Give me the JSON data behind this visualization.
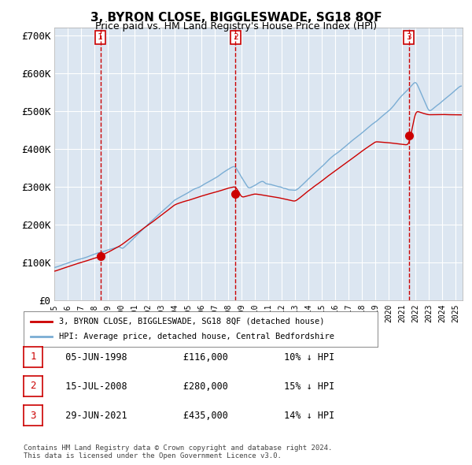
{
  "title": "3, BYRON CLOSE, BIGGLESWADE, SG18 8QF",
  "subtitle": "Price paid vs. HM Land Registry's House Price Index (HPI)",
  "ylabel": "",
  "background_color": "#ffffff",
  "plot_bg_color": "#dce6f1",
  "grid_color": "#ffffff",
  "hpi_color": "#7aadd4",
  "price_color": "#cc0000",
  "sale_marker_color": "#cc0000",
  "vline_color": "#cc0000",
  "legend_label_price": "3, BYRON CLOSE, BIGGLESWADE, SG18 8QF (detached house)",
  "legend_label_hpi": "HPI: Average price, detached house, Central Bedfordshire",
  "footer": "Contains HM Land Registry data © Crown copyright and database right 2024.\nThis data is licensed under the Open Government Licence v3.0.",
  "sales": [
    {
      "num": 1,
      "date_str": "05-JUN-1998",
      "year": 1998.44,
      "price": 116000,
      "pct": "10%",
      "dir": "↓"
    },
    {
      "num": 2,
      "date_str": "15-JUL-2008",
      "year": 2008.54,
      "price": 280000,
      "pct": "15%",
      "dir": "↓"
    },
    {
      "num": 3,
      "date_str": "29-JUN-2021",
      "year": 2021.49,
      "price": 435000,
      "pct": "14%",
      "dir": "↓"
    }
  ],
  "xmin": 1995.0,
  "xmax": 2025.5,
  "ymin": 0,
  "ymax": 720000,
  "yticks": [
    0,
    100000,
    200000,
    300000,
    400000,
    500000,
    600000,
    700000
  ],
  "ytick_labels": [
    "£0",
    "£100K",
    "£200K",
    "£300K",
    "£400K",
    "£500K",
    "£600K",
    "£700K"
  ]
}
